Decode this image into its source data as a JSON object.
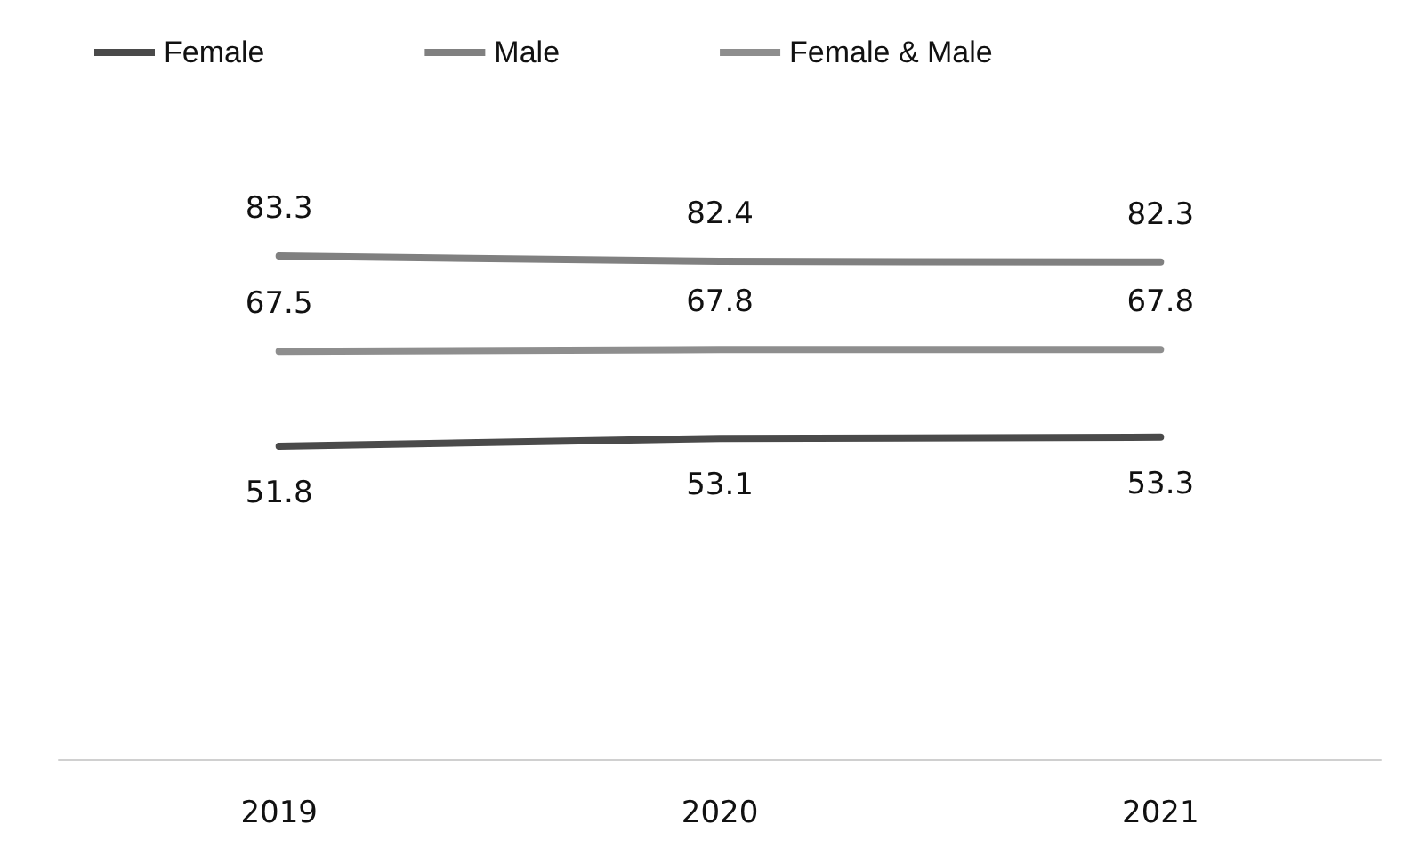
{
  "chart_data": {
    "type": "line",
    "categories": [
      "2019",
      "2020",
      "2021"
    ],
    "series": [
      {
        "name": "Female",
        "color": "#4a4a4a",
        "values": [
          51.8,
          53.1,
          53.3
        ]
      },
      {
        "name": "Male",
        "color": "#808080",
        "values": [
          83.3,
          82.4,
          82.3
        ]
      },
      {
        "name": "Female & Male",
        "color": "#8e8e8e",
        "values": [
          67.5,
          67.8,
          67.8
        ]
      }
    ],
    "data_labels": true,
    "legend": "top",
    "marker": "none",
    "line_style": "solid",
    "grid": false
  }
}
